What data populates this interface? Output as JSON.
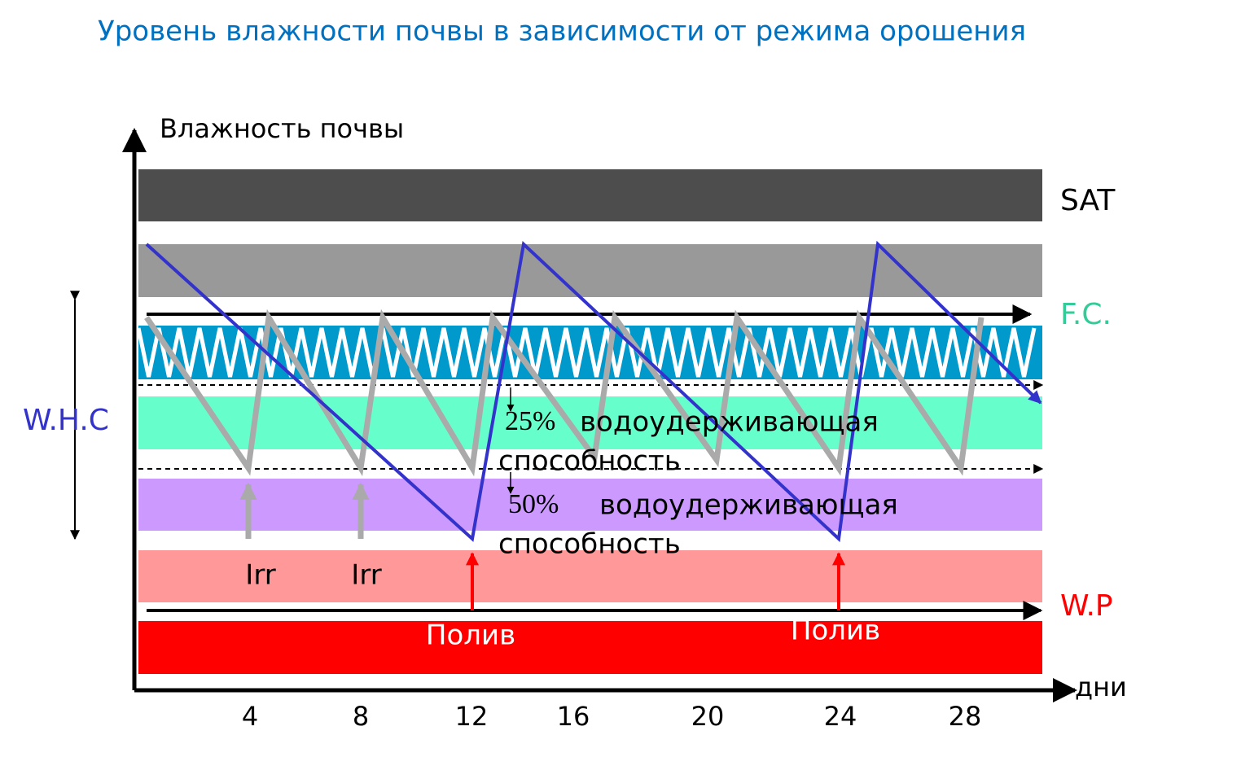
{
  "title": "Уровень влажности почвы в зависимости от режима орошения",
  "y_axis_label": "Влажность почвы",
  "x_axis_label": "дни",
  "x_ticks": [
    "4",
    "8",
    "12",
    "16",
    "20",
    "24",
    "28"
  ],
  "zones": {
    "saturation": "SAT",
    "field_capacity": "F.C.",
    "wilting_point": "W.P",
    "water_holding_capacity": "W.H.C"
  },
  "levels": [
    {
      "percent": "25%",
      "line1": "водоудерживающая",
      "line2": "способность"
    },
    {
      "percent": "50%",
      "line1": "водоудерживающая",
      "line2": "способность"
    }
  ],
  "irrigation_labels": [
    "Irr",
    "Irr"
  ],
  "watering_labels": [
    "Полив",
    "Полив"
  ]
}
